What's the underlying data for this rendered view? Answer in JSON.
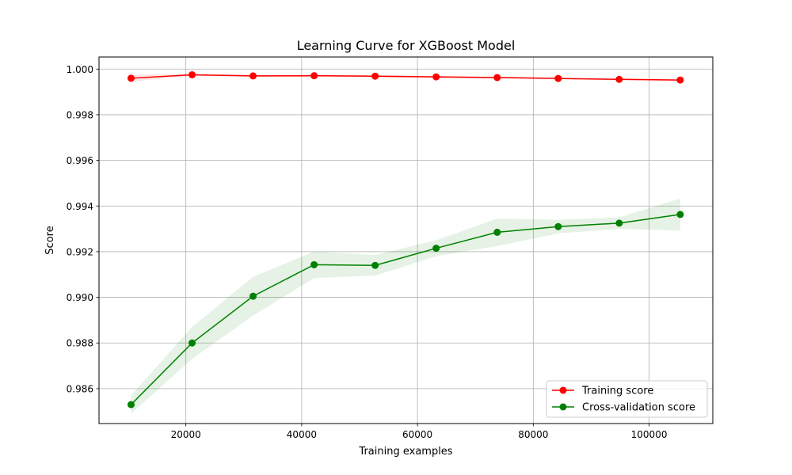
{
  "chart_data": {
    "type": "line",
    "title": "Learning Curve for XGBoost Model",
    "xlabel": "Training examples",
    "ylabel": "Score",
    "xlim": [
      5000,
      111000
    ],
    "ylim": [
      0.98447,
      1.00053
    ],
    "grid": true,
    "legend_position": "lower-right",
    "x": [
      10537,
      21075,
      31612,
      42150,
      52687,
      63225,
      73762,
      84300,
      94837,
      105375
    ],
    "xticks": [
      20000,
      40000,
      60000,
      80000,
      100000
    ],
    "xtick_labels": [
      "20000",
      "40000",
      "60000",
      "80000",
      "100000"
    ],
    "yticks": [
      0.986,
      0.988,
      0.99,
      0.992,
      0.994,
      0.996,
      0.998,
      1.0
    ],
    "ytick_labels": [
      "0.986",
      "0.988",
      "0.990",
      "0.992",
      "0.994",
      "0.996",
      "0.998",
      "1.000"
    ],
    "series": [
      {
        "name": "Training score",
        "color": "#ff0000",
        "values": [
          0.9996,
          0.99975,
          0.9997,
          0.99971,
          0.99969,
          0.99966,
          0.99963,
          0.99959,
          0.99955,
          0.99952
        ],
        "lower": [
          0.99945,
          0.9997,
          0.99965,
          0.99966,
          0.99964,
          0.99962,
          0.99959,
          0.99955,
          0.99951,
          0.99949
        ],
        "upper": [
          0.99975,
          0.9998,
          0.99975,
          0.99976,
          0.99974,
          0.9997,
          0.99967,
          0.99963,
          0.99959,
          0.99955
        ]
      },
      {
        "name": "Cross-validation score",
        "color": "#008000",
        "values": [
          0.9853,
          0.988,
          0.99005,
          0.99143,
          0.9914,
          0.99215,
          0.99285,
          0.9931,
          0.99325,
          0.99363
        ],
        "lower": [
          0.9849,
          0.9873,
          0.9892,
          0.99085,
          0.99095,
          0.9918,
          0.99225,
          0.9928,
          0.993,
          0.99293
        ],
        "upper": [
          0.9857,
          0.9887,
          0.9909,
          0.992,
          0.99185,
          0.9925,
          0.99345,
          0.9934,
          0.9935,
          0.99433
        ]
      }
    ]
  }
}
